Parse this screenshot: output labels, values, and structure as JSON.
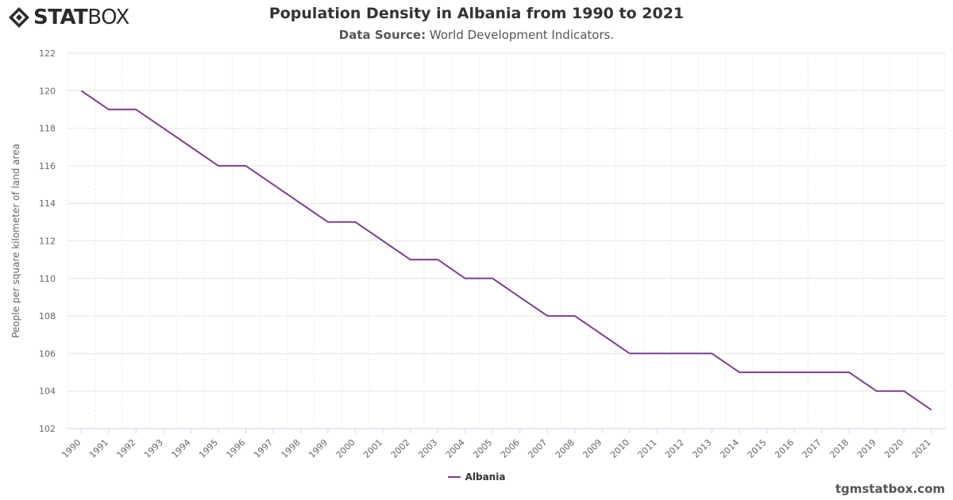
{
  "header": {
    "logo_bold": "STAT",
    "logo_light": "BOX",
    "title": "Population Density in Albania from 1990 to 2021",
    "subtitle_label": "Data Source:",
    "subtitle_value": " World Development Indicators."
  },
  "watermark": "tgmstatbox.com",
  "colors": {
    "series": "#7b3f8f",
    "grid": "#e6e6e6",
    "axis": "#ccd6eb"
  },
  "chart_data": {
    "type": "line",
    "title": "Population Density in Albania from 1990 to 2021",
    "subtitle": "Data Source: World Development Indicators.",
    "xlabel": "",
    "ylabel": "People per square kilometer of land area",
    "ylim": [
      102,
      122
    ],
    "yticks": [
      102,
      104,
      106,
      108,
      110,
      112,
      114,
      116,
      118,
      120,
      122
    ],
    "grid": true,
    "legend_position": "bottom-center",
    "x": [
      "1990",
      "1991",
      "1992",
      "1993",
      "1994",
      "1995",
      "1996",
      "1997",
      "1998",
      "1999",
      "2000",
      "2001",
      "2002",
      "2003",
      "2004",
      "2005",
      "2006",
      "2007",
      "2008",
      "2009",
      "2010",
      "2011",
      "2012",
      "2013",
      "2014",
      "2015",
      "2016",
      "2017",
      "2018",
      "2019",
      "2020",
      "2021"
    ],
    "series": [
      {
        "name": "Albania",
        "values": [
          120,
          119,
          119,
          null,
          null,
          116,
          116,
          null,
          null,
          113,
          113,
          null,
          111,
          111,
          110,
          110,
          null,
          108,
          108,
          null,
          106,
          106,
          106,
          106,
          105,
          105,
          105,
          105,
          105,
          104,
          104,
          103
        ]
      }
    ]
  }
}
